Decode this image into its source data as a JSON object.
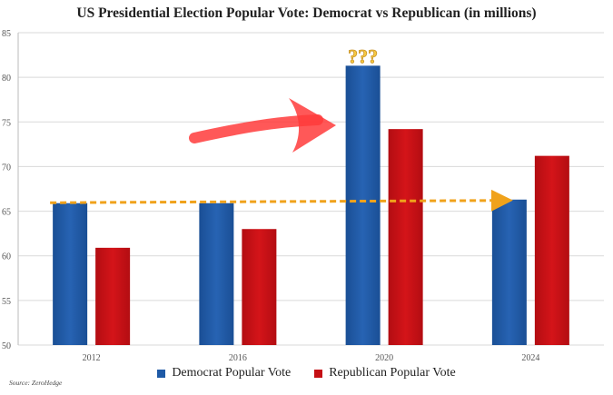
{
  "chart_data": {
    "type": "bar",
    "title": "US Presidential Election Popular Vote: Democrat vs Republican (in millions)",
    "categories": [
      "2012",
      "2016",
      "2020",
      "2024"
    ],
    "series": [
      {
        "name": "Democrat Popular Vote",
        "color": "#1f5aa6",
        "values": [
          65.9,
          65.9,
          81.3,
          66.3
        ]
      },
      {
        "name": "Republican Popular Vote",
        "color": "#c50f14",
        "values": [
          60.9,
          63.0,
          74.2,
          71.2
        ]
      }
    ],
    "ylim": [
      50,
      85
    ],
    "yticks": [
      50,
      55,
      60,
      65,
      70,
      75,
      80,
      85
    ],
    "grid": true,
    "legend": "bottom",
    "annotations": {
      "question_marks": "???",
      "dashed_arrow_level": 66
    },
    "source": "Source: ZeroHedge"
  }
}
